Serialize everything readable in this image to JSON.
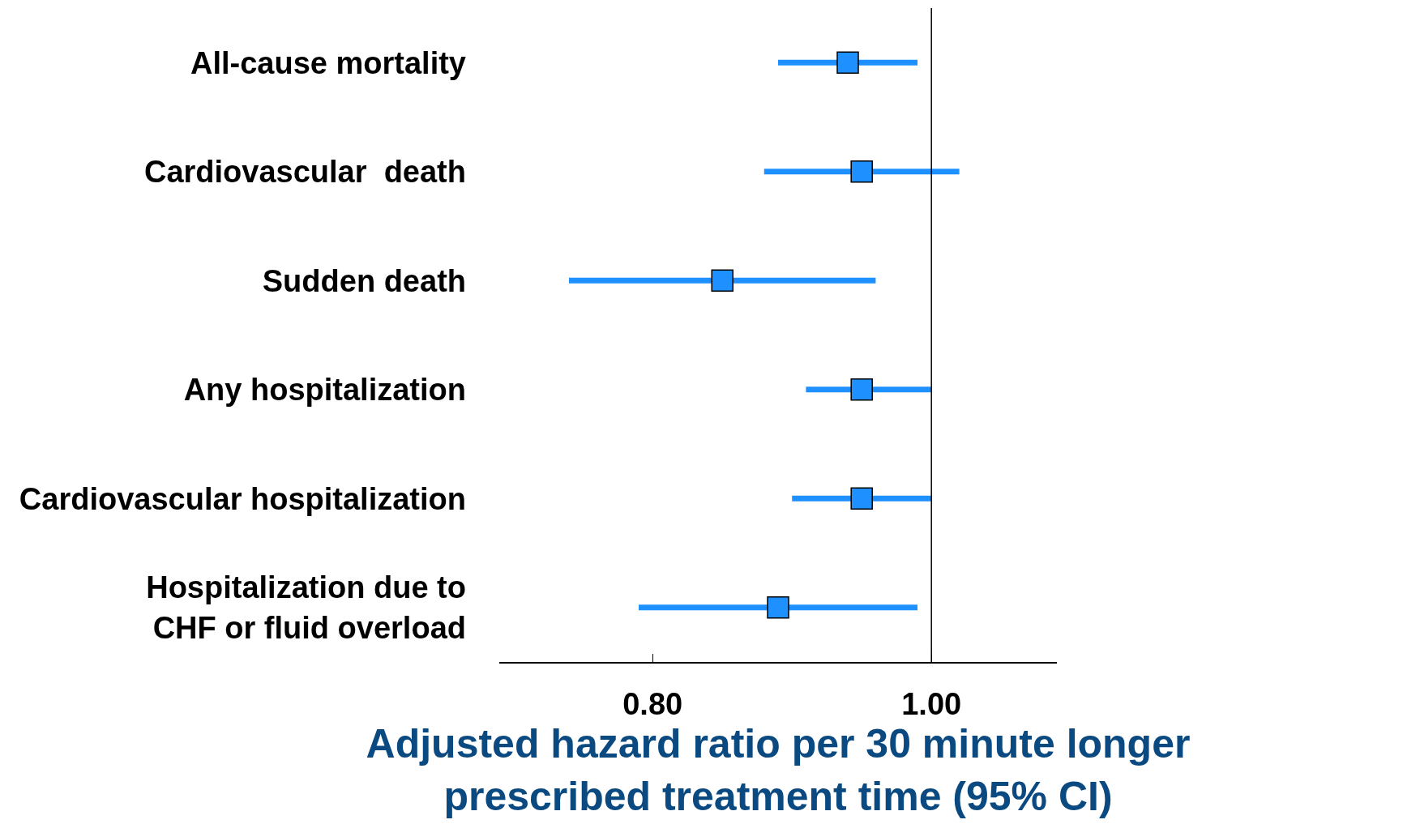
{
  "chart_data": {
    "type": "scatter",
    "orientation": "horizontal",
    "categories": [
      "All-cause mortality",
      "Cardiovascular  death",
      "Sudden death",
      "Any hospitalization",
      "Cardiovascular hospitalization",
      "Hospitalization due to\nCHF or fluid overload"
    ],
    "values": [
      0.94,
      0.95,
      0.85,
      0.95,
      0.95,
      0.89
    ],
    "errors": [
      [
        0.89,
        0.99
      ],
      [
        0.88,
        1.02
      ],
      [
        0.74,
        0.96
      ],
      [
        0.91,
        1.0
      ],
      [
        0.9,
        1.0
      ],
      [
        0.79,
        0.99
      ]
    ],
    "color": "#1e90ff",
    "marker": "square",
    "xlim": [
      0.69,
      1.09
    ],
    "xticks": [
      {
        "value": 0.8,
        "label": "0.80"
      },
      {
        "value": 1.0,
        "label": "1.00"
      }
    ],
    "xlabel": "Adjusted hazard ratio per 30 minute longer\nprescribed treatment time (95% CI)",
    "ref_lines": [
      {
        "axis": "x",
        "value": 1.0,
        "color": "#000000"
      }
    ]
  }
}
